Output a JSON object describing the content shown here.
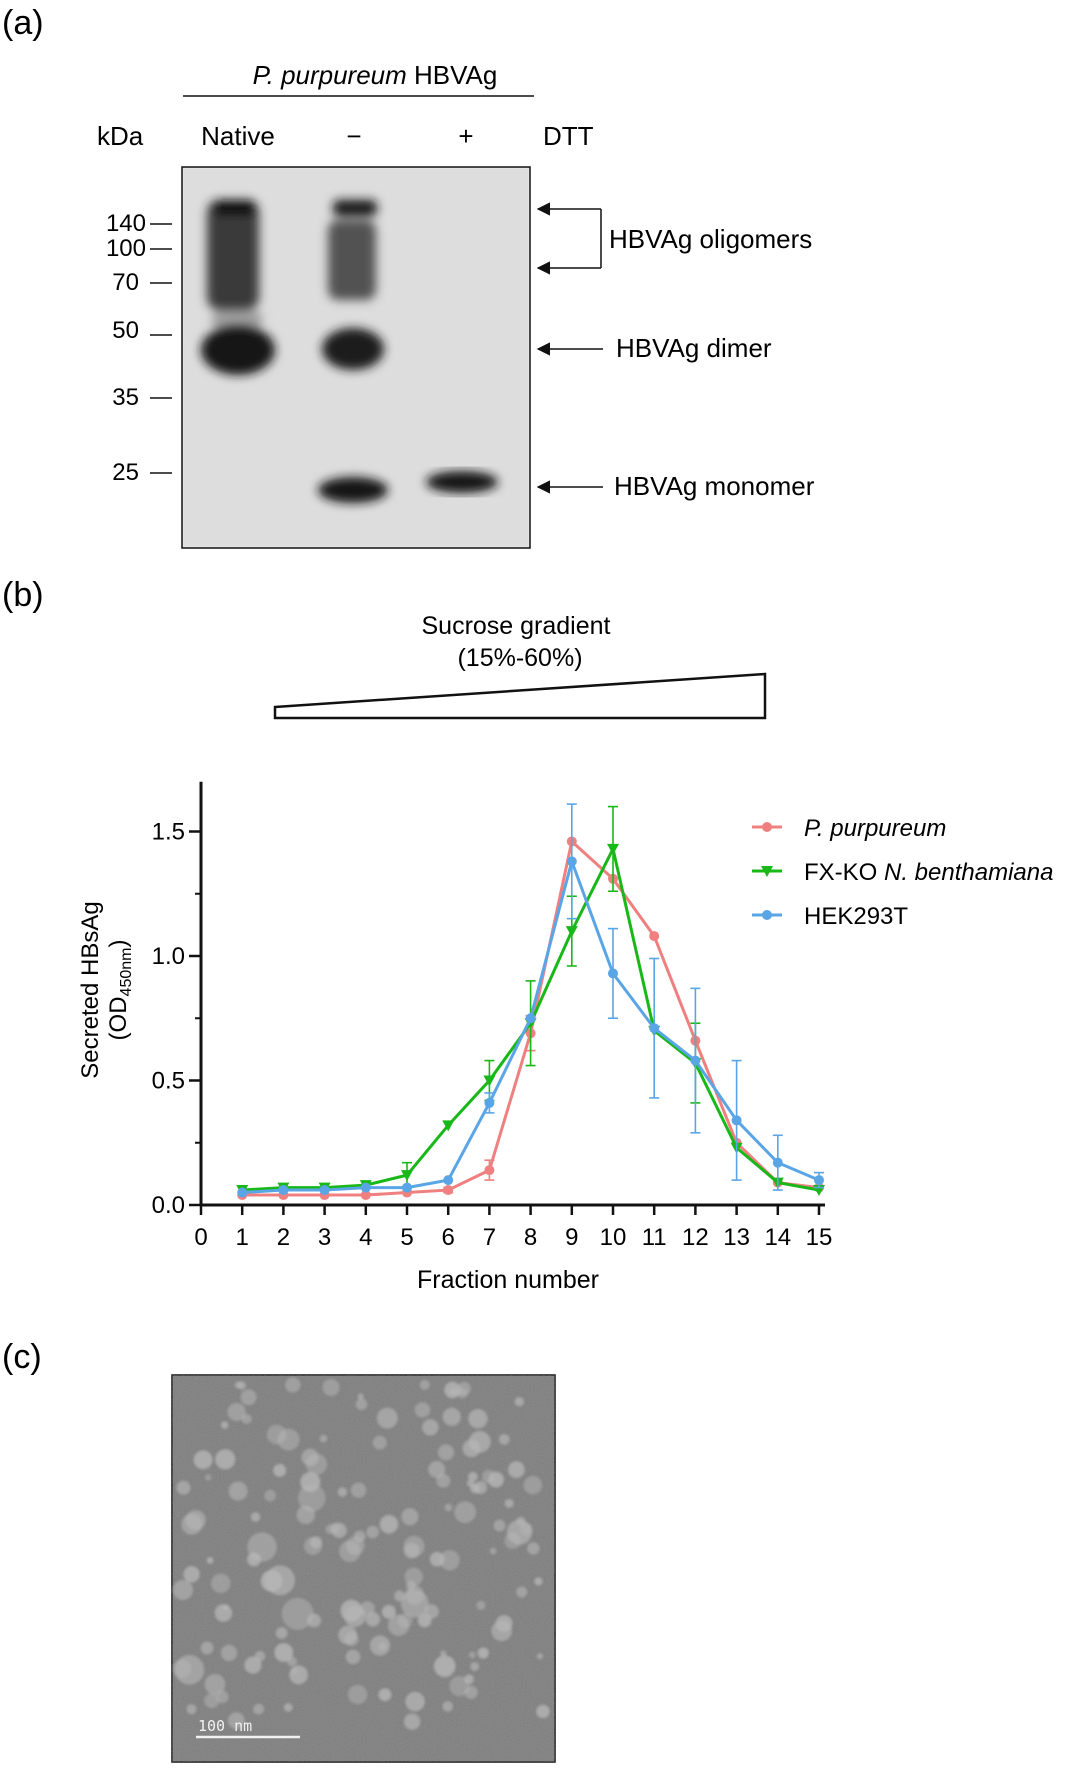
{
  "panel_a": {
    "label": "(a)",
    "header_italic": "P. purpureum",
    "header_rest": " HBVAg",
    "kda_label": "kDa",
    "lanes": [
      "Native",
      "−",
      "+"
    ],
    "dtt_label": "DTT",
    "markers": [
      "140",
      "100",
      "70",
      "50",
      "35",
      "25"
    ],
    "annotations": {
      "oligomers": "HBVAg oligomers",
      "dimer": "HBVAg dimer",
      "monomer": "HBVAg monomer"
    }
  },
  "panel_b": {
    "label": "(b)",
    "gradient_line1": "Sucrose gradient",
    "gradient_line2": "(15%-60%)",
    "ylabel_line1": "Secreted HBsAg",
    "ylabel_od": "(OD",
    "ylabel_sub": "450nm",
    "ylabel_close": ")"
  },
  "panel_c": {
    "label": "(c)",
    "scale_bar": "100 nm"
  },
  "chart_data": {
    "type": "line",
    "title": "",
    "xlabel": "Fraction number",
    "ylabel": "Secreted HBsAg (OD450nm)",
    "xlim": [
      0,
      15
    ],
    "ylim": [
      0,
      1.7
    ],
    "x_ticks": [
      0,
      1,
      2,
      3,
      4,
      5,
      6,
      7,
      8,
      9,
      10,
      11,
      12,
      13,
      14,
      15
    ],
    "y_ticks": [
      "0.0",
      "0.5",
      "1.0",
      "1.5"
    ],
    "legend_position": "top-right",
    "x": [
      1,
      2,
      3,
      4,
      5,
      6,
      7,
      8,
      9,
      10,
      11,
      12,
      13,
      14,
      15
    ],
    "series": [
      {
        "name_italic": "P. purpureum",
        "name_rest": "",
        "color": "#f08080",
        "marker": "circle",
        "values": [
          0.04,
          0.04,
          0.04,
          0.04,
          0.05,
          0.06,
          0.14,
          0.69,
          1.46,
          1.31,
          1.08,
          0.66,
          0.25,
          0.09,
          0.07
        ],
        "errors": [
          0.0,
          0.0,
          0.0,
          0.0,
          0.0,
          0.01,
          0.04,
          0.07,
          0.0,
          0.0,
          0.0,
          0.0,
          0.0,
          0.0,
          0.0
        ]
      },
      {
        "name_italic": "N. benthamiana",
        "name_prefix": "FX-KO ",
        "color": "#18b818",
        "marker": "triangle-down",
        "values": [
          0.06,
          0.07,
          0.07,
          0.08,
          0.12,
          0.32,
          0.5,
          0.73,
          1.1,
          1.43,
          0.7,
          0.57,
          0.23,
          0.09,
          0.06
        ],
        "errors": [
          0.0,
          0.0,
          0.0,
          0.0,
          0.05,
          0.0,
          0.08,
          0.17,
          0.14,
          0.17,
          0.0,
          0.16,
          0.0,
          0.0,
          0.0
        ]
      },
      {
        "name_italic": "",
        "name_prefix": "HEK293T",
        "color": "#5aa5e6",
        "marker": "circle",
        "values": [
          0.05,
          0.06,
          0.06,
          0.07,
          0.07,
          0.1,
          0.41,
          0.75,
          1.38,
          0.93,
          0.71,
          0.58,
          0.34,
          0.17,
          0.1
        ],
        "errors": [
          0.0,
          0.0,
          0.0,
          0.0,
          0.0,
          0.0,
          0.04,
          0.0,
          0.23,
          0.18,
          0.28,
          0.29,
          0.24,
          0.11,
          0.03
        ]
      }
    ]
  }
}
